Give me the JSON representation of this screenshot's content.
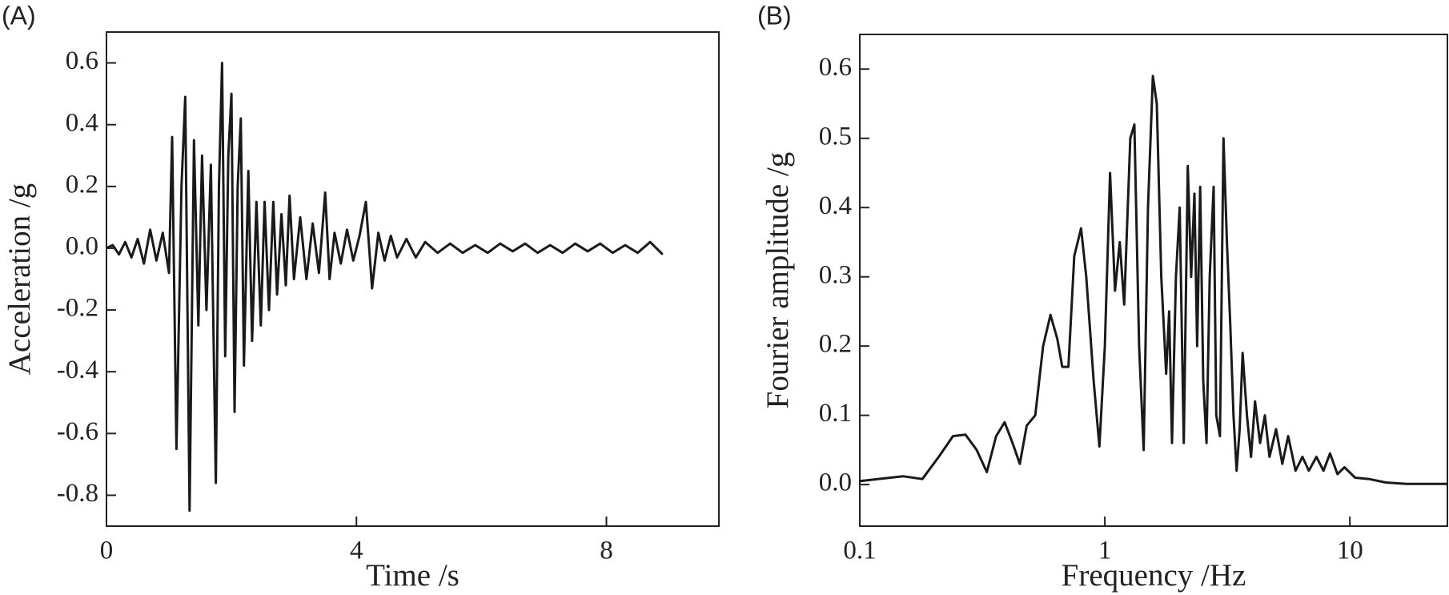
{
  "chart_data": [
    {
      "type": "line",
      "title": "(A)",
      "x_label": "Time /s",
      "y_label": "Acceleration /g",
      "xlim": [
        0,
        9.8
      ],
      "ylim": [
        -0.9,
        0.7
      ],
      "log_x": false,
      "xticks": [
        0,
        4,
        8
      ],
      "yticks": [
        -0.8,
        -0.6,
        -0.4,
        -0.2,
        {
          "value": 0,
          "label": "0.0"
        },
        0.2,
        0.4,
        0.6
      ],
      "series": [
        {
          "color": "#1a1a1a",
          "x": [
            0,
            0.1,
            0.2,
            0.3,
            0.4,
            0.5,
            0.6,
            0.7,
            0.8,
            0.9,
            1.0,
            1.05,
            1.12,
            1.2,
            1.26,
            1.33,
            1.4,
            1.47,
            1.53,
            1.6,
            1.67,
            1.75,
            1.8,
            1.85,
            1.9,
            1.95,
            2.0,
            2.05,
            2.1,
            2.15,
            2.2,
            2.27,
            2.33,
            2.4,
            2.47,
            2.53,
            2.6,
            2.67,
            2.73,
            2.8,
            2.87,
            2.93,
            3.0,
            3.1,
            3.2,
            3.3,
            3.4,
            3.5,
            3.57,
            3.65,
            3.75,
            3.85,
            3.95,
            4.05,
            4.15,
            4.25,
            4.35,
            4.45,
            4.55,
            4.65,
            4.8,
            4.95,
            5.1,
            5.3,
            5.5,
            5.7,
            5.9,
            6.1,
            6.3,
            6.5,
            6.7,
            6.9,
            7.1,
            7.3,
            7.5,
            7.7,
            7.9,
            8.1,
            8.3,
            8.5,
            8.7,
            8.9
          ],
          "values": [
            0,
            0.01,
            -0.02,
            0.02,
            -0.03,
            0.03,
            -0.05,
            0.06,
            -0.04,
            0.05,
            -0.08,
            0.36,
            -0.65,
            0.2,
            0.49,
            -0.85,
            0.35,
            -0.25,
            0.3,
            -0.2,
            0.27,
            -0.76,
            0.2,
            0.6,
            -0.35,
            0.3,
            0.5,
            -0.53,
            0.2,
            0.42,
            -0.38,
            0.25,
            -0.3,
            0.15,
            -0.25,
            0.15,
            -0.2,
            0.15,
            -0.15,
            0.11,
            -0.12,
            0.17,
            -0.1,
            0.1,
            -0.1,
            0.08,
            -0.08,
            0.18,
            -0.1,
            0.05,
            -0.05,
            0.06,
            -0.04,
            0.04,
            0.15,
            -0.13,
            0.05,
            -0.04,
            0.04,
            -0.03,
            0.03,
            -0.03,
            0.02,
            -0.015,
            0.015,
            -0.015,
            0.01,
            -0.015,
            0.015,
            -0.01,
            0.015,
            -0.015,
            0.01,
            -0.015,
            0.015,
            -0.01,
            0.015,
            -0.015,
            0.01,
            -0.015,
            0.02,
            -0.02
          ]
        }
      ]
    },
    {
      "type": "line",
      "title": "(B)",
      "x_label": "Frequency /Hz",
      "y_label": "Fourier amplitude /g",
      "xlim": [
        0.1,
        25
      ],
      "ylim": [
        -0.06,
        0.65
      ],
      "log_x": true,
      "xticks": [
        0.1,
        1,
        10
      ],
      "yticks": [
        {
          "value": 0,
          "label": "0.0"
        },
        0.1,
        0.2,
        0.3,
        0.4,
        0.5,
        0.6
      ],
      "series": [
        {
          "color": "#1a1a1a",
          "x": [
            0.1,
            0.15,
            0.18,
            0.21,
            0.24,
            0.27,
            0.3,
            0.33,
            0.36,
            0.39,
            0.42,
            0.45,
            0.48,
            0.52,
            0.56,
            0.6,
            0.64,
            0.67,
            0.71,
            0.75,
            0.8,
            0.84,
            0.9,
            0.95,
            1.0,
            1.05,
            1.1,
            1.15,
            1.2,
            1.27,
            1.32,
            1.38,
            1.44,
            1.5,
            1.57,
            1.63,
            1.7,
            1.78,
            1.83,
            1.88,
            1.95,
            2.02,
            2.1,
            2.18,
            2.25,
            2.32,
            2.38,
            2.45,
            2.52,
            2.6,
            2.68,
            2.78,
            2.85,
            2.95,
            3.05,
            3.15,
            3.25,
            3.35,
            3.45,
            3.55,
            3.65,
            3.8,
            3.95,
            4.1,
            4.3,
            4.5,
            4.7,
            5,
            5.3,
            5.6,
            6,
            6.4,
            6.8,
            7.3,
            7.8,
            8.3,
            8.9,
            9.5,
            10.5,
            12,
            14,
            17,
            20,
            25
          ],
          "values": [
            0.005,
            0.012,
            0.008,
            0.04,
            0.07,
            0.072,
            0.05,
            0.018,
            0.07,
            0.09,
            0.06,
            0.03,
            0.085,
            0.1,
            0.2,
            0.245,
            0.21,
            0.17,
            0.17,
            0.33,
            0.37,
            0.3,
            0.15,
            0.055,
            0.2,
            0.45,
            0.28,
            0.35,
            0.26,
            0.5,
            0.52,
            0.2,
            0.05,
            0.4,
            0.59,
            0.55,
            0.3,
            0.16,
            0.25,
            0.06,
            0.3,
            0.4,
            0.06,
            0.46,
            0.3,
            0.42,
            0.2,
            0.43,
            0.15,
            0.06,
            0.3,
            0.43,
            0.1,
            0.07,
            0.5,
            0.35,
            0.23,
            0.1,
            0.02,
            0.08,
            0.19,
            0.1,
            0.04,
            0.12,
            0.06,
            0.1,
            0.04,
            0.08,
            0.03,
            0.07,
            0.02,
            0.04,
            0.02,
            0.04,
            0.02,
            0.045,
            0.015,
            0.025,
            0.01,
            0.008,
            0.003,
            0.001,
            0.001,
            0.001
          ]
        }
      ]
    }
  ]
}
